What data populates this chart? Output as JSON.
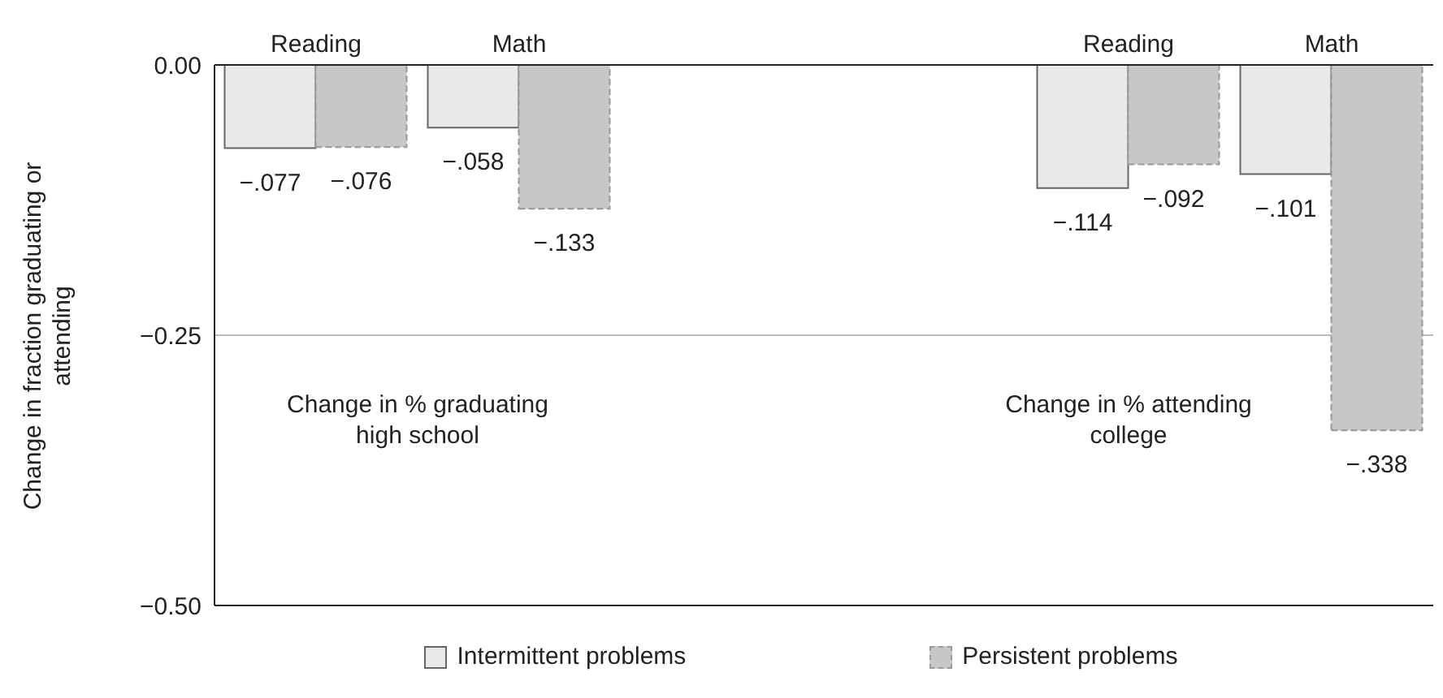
{
  "chart_data": {
    "type": "bar",
    "categories": [
      "Reading",
      "Math",
      null,
      null,
      "Reading",
      "Math"
    ],
    "series": [
      {
        "name": "Intermittent problems",
        "color": "#e8e9eb",
        "line_style": "solid",
        "values": [
          -0.077,
          -0.058,
          null,
          null,
          -0.114,
          -0.101
        ],
        "value_labels": [
          "−.077",
          "−.058",
          null,
          null,
          "−.114",
          "−.101"
        ]
      },
      {
        "name": "Persistent problems",
        "color": "#c6c7c9",
        "line_style": "dashed",
        "values": [
          -0.076,
          -0.133,
          null,
          null,
          -0.092,
          -0.338
        ],
        "value_labels": [
          "−.076",
          "−.133",
          null,
          null,
          "−.092",
          "−.338"
        ]
      }
    ],
    "ylabel": "Change in fraction graduating or attending",
    "ylim": [
      -0.5,
      0
    ],
    "yticks": [
      {
        "value": 0,
        "label": "0.00"
      },
      {
        "value": -0.25,
        "label": "−0.25"
      },
      {
        "value": -0.5,
        "label": "−0.50"
      }
    ],
    "grid": "y",
    "legend": "bottom",
    "annotations": [
      "Change in % graduating high school",
      "Change in % attending college"
    ]
  }
}
